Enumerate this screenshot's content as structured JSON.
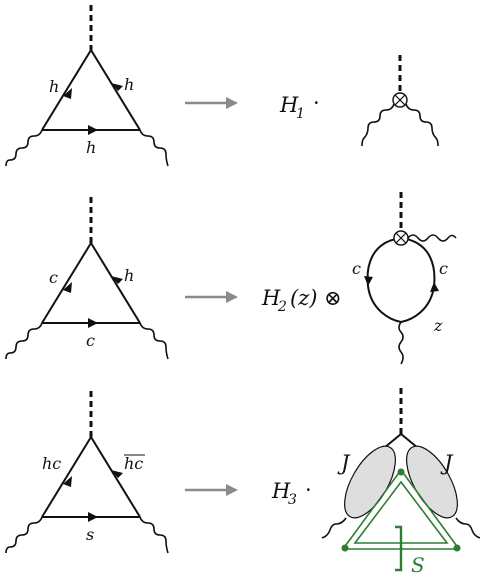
{
  "rows": [
    {
      "left_labels": {
        "left": "h",
        "right": "h",
        "bottom": "h"
      },
      "result_label": "H",
      "result_sub": "1",
      "result_op": "·"
    },
    {
      "left_labels": {
        "left": "c",
        "right": "h",
        "bottom": "c"
      },
      "result_label": "H",
      "result_sub": "2",
      "result_arg": "(z)",
      "result_op": "⊗",
      "loop_labels": {
        "left": "c",
        "right": "c",
        "bottom": "z"
      }
    },
    {
      "left_labels": {
        "left": "hc",
        "right": "hc",
        "bottom": "s"
      },
      "result_label": "H",
      "result_sub": "3",
      "result_op": "·",
      "jet_left": "J",
      "jet_right": "J",
      "soft_label": "S"
    }
  ],
  "colors": {
    "line": "#111111",
    "arrow": "#8a8a8a",
    "soft": "#2e7d32",
    "jet_fill": "#dedede"
  }
}
